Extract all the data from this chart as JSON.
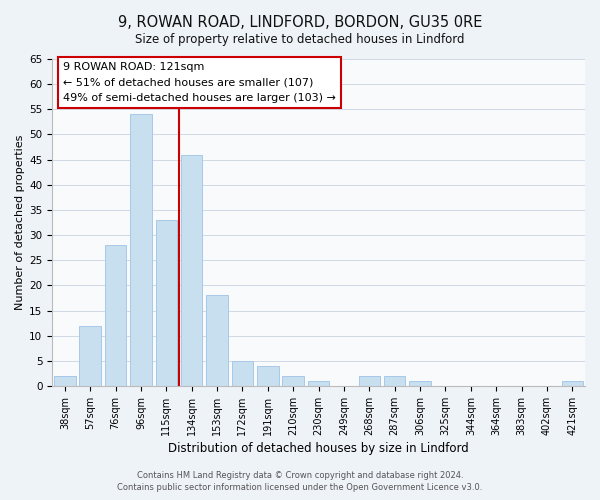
{
  "title": "9, ROWAN ROAD, LINDFORD, BORDON, GU35 0RE",
  "subtitle": "Size of property relative to detached houses in Lindford",
  "xlabel": "Distribution of detached houses by size in Lindford",
  "ylabel": "Number of detached properties",
  "bar_color": "#c8dff0",
  "bar_edgecolor": "#a8c8e8",
  "categories": [
    "38sqm",
    "57sqm",
    "76sqm",
    "96sqm",
    "115sqm",
    "134sqm",
    "153sqm",
    "172sqm",
    "191sqm",
    "210sqm",
    "230sqm",
    "249sqm",
    "268sqm",
    "287sqm",
    "306sqm",
    "325sqm",
    "344sqm",
    "364sqm",
    "383sqm",
    "402sqm",
    "421sqm"
  ],
  "values": [
    2,
    12,
    28,
    54,
    33,
    46,
    18,
    5,
    4,
    2,
    1,
    0,
    2,
    2,
    1,
    0,
    0,
    0,
    0,
    0,
    1
  ],
  "vline_x_index": 4,
  "vline_color": "#cc0000",
  "ylim": [
    0,
    65
  ],
  "yticks": [
    0,
    5,
    10,
    15,
    20,
    25,
    30,
    35,
    40,
    45,
    50,
    55,
    60,
    65
  ],
  "annotation_title": "9 ROWAN ROAD: 121sqm",
  "annotation_line1": "← 51% of detached houses are smaller (107)",
  "annotation_line2": "49% of semi-detached houses are larger (103) →",
  "annotation_box_color": "#ffffff",
  "annotation_box_edgecolor": "#cc0000",
  "footer1": "Contains HM Land Registry data © Crown copyright and database right 2024.",
  "footer2": "Contains public sector information licensed under the Open Government Licence v3.0.",
  "background_color": "#eef3f8",
  "plot_background_color": "#f8fafc",
  "grid_color": "#d0d8e4"
}
